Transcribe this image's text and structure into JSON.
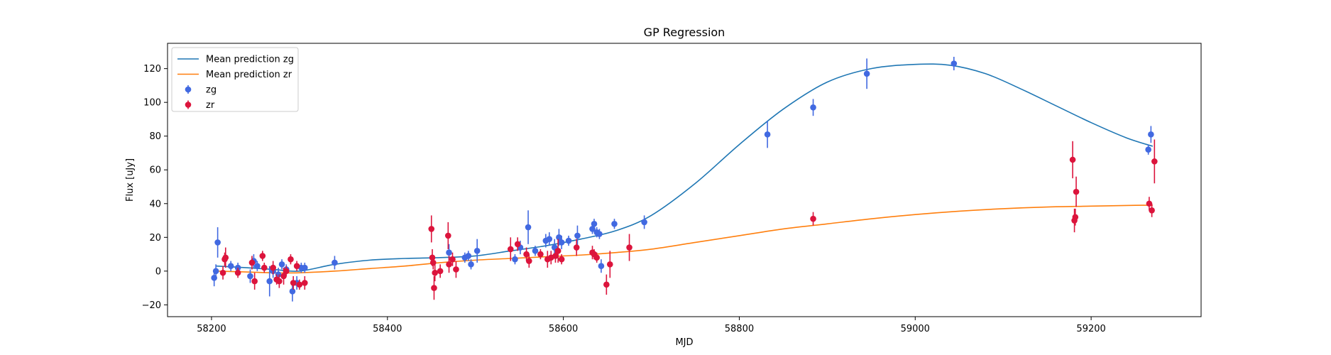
{
  "chart_data": {
    "type": "scatter",
    "title": "GP Regression",
    "xlabel": "MJD",
    "ylabel": "Flux [uJy]",
    "xlim": [
      58150,
      59325
    ],
    "ylim": [
      -27,
      135
    ],
    "xticks": [
      58200,
      58400,
      58600,
      58800,
      59000,
      59200
    ],
    "yticks": [
      -20,
      0,
      20,
      40,
      60,
      80,
      100,
      120
    ],
    "legend_position": "upper-left",
    "lines": [
      {
        "name": "Mean prediction zg",
        "color": "#1f77b4",
        "x": [
          58205,
          58240,
          58270,
          58300,
          58340,
          58380,
          58420,
          58460,
          58500,
          58540,
          58580,
          58620,
          58660,
          58700,
          58750,
          58800,
          58850,
          58900,
          58950,
          59000,
          59040,
          59080,
          59120,
          59160,
          59200,
          59240,
          59270
        ],
        "y": [
          3,
          2,
          1,
          0,
          4,
          6.5,
          7.5,
          8,
          9,
          12,
          15,
          19,
          24,
          33,
          52,
          75,
          96,
          112,
          120,
          122.5,
          122,
          117,
          108,
          98,
          88,
          79,
          74
        ]
      },
      {
        "name": "Mean prediction zr",
        "color": "#ff7f0e",
        "x": [
          58205,
          58240,
          58270,
          58300,
          58340,
          58380,
          58420,
          58460,
          58500,
          58540,
          58580,
          58620,
          58660,
          58700,
          58750,
          58800,
          58850,
          58900,
          58950,
          59000,
          59050,
          59100,
          59150,
          59200,
          59250,
          59270
        ],
        "y": [
          0,
          -0.5,
          -1,
          -1,
          0,
          1.5,
          3,
          5,
          6.5,
          7.5,
          8.5,
          9.5,
          11,
          13,
          17,
          21,
          25,
          28,
          31,
          33.5,
          35.5,
          37,
          38,
          38.5,
          39,
          39
        ]
      }
    ],
    "series": [
      {
        "name": "zg",
        "color": "#4169e1",
        "points": [
          {
            "x": 58203,
            "y": -4,
            "err": 5
          },
          {
            "x": 58205,
            "y": 0,
            "err": 4
          },
          {
            "x": 58207,
            "y": 17,
            "err": 9
          },
          {
            "x": 58222,
            "y": 3,
            "err": 3
          },
          {
            "x": 58230,
            "y": 2,
            "err": 3
          },
          {
            "x": 58244,
            "y": -3,
            "err": 4
          },
          {
            "x": 58248,
            "y": 6,
            "err": 4
          },
          {
            "x": 58252,
            "y": 3,
            "err": 3
          },
          {
            "x": 58266,
            "y": -6,
            "err": 9
          },
          {
            "x": 58270,
            "y": 0,
            "err": 4
          },
          {
            "x": 58276,
            "y": -2,
            "err": 4
          },
          {
            "x": 58280,
            "y": 4,
            "err": 3
          },
          {
            "x": 58285,
            "y": 1,
            "err": 3
          },
          {
            "x": 58292,
            "y": -12,
            "err": 6
          },
          {
            "x": 58297,
            "y": -7,
            "err": 4
          },
          {
            "x": 58302,
            "y": 2,
            "err": 3
          },
          {
            "x": 58306,
            "y": 2,
            "err": 3
          },
          {
            "x": 58340,
            "y": 5,
            "err": 4
          },
          {
            "x": 58470,
            "y": 11,
            "err": 5
          },
          {
            "x": 58488,
            "y": 8,
            "err": 3
          },
          {
            "x": 58492,
            "y": 9,
            "err": 3
          },
          {
            "x": 58495,
            "y": 4,
            "err": 3
          },
          {
            "x": 58502,
            "y": 12,
            "err": 7
          },
          {
            "x": 58545,
            "y": 7,
            "err": 3
          },
          {
            "x": 58551,
            "y": 14,
            "err": 4
          },
          {
            "x": 58560,
            "y": 26,
            "err": 10
          },
          {
            "x": 58568,
            "y": 12,
            "err": 3
          },
          {
            "x": 58580,
            "y": 18,
            "err": 4
          },
          {
            "x": 58584,
            "y": 19,
            "err": 4
          },
          {
            "x": 58590,
            "y": 14,
            "err": 5
          },
          {
            "x": 58595,
            "y": 20,
            "err": 5
          },
          {
            "x": 58598,
            "y": 17,
            "err": 4
          },
          {
            "x": 58606,
            "y": 18,
            "err": 3
          },
          {
            "x": 58616,
            "y": 21,
            "err": 6
          },
          {
            "x": 58633,
            "y": 25,
            "err": 3
          },
          {
            "x": 58635,
            "y": 28,
            "err": 3
          },
          {
            "x": 58638,
            "y": 23,
            "err": 3
          },
          {
            "x": 58641,
            "y": 22,
            "err": 3
          },
          {
            "x": 58643,
            "y": 3,
            "err": 4
          },
          {
            "x": 58658,
            "y": 28,
            "err": 3
          },
          {
            "x": 58692,
            "y": 29,
            "err": 4
          },
          {
            "x": 58832,
            "y": 81,
            "err": 8
          },
          {
            "x": 58884,
            "y": 97,
            "err": 5
          },
          {
            "x": 58945,
            "y": 117,
            "err": 9
          },
          {
            "x": 59044,
            "y": 123,
            "err": 4
          },
          {
            "x": 59265,
            "y": 72,
            "err": 3
          },
          {
            "x": 59268,
            "y": 81,
            "err": 5
          }
        ]
      },
      {
        "name": "zr",
        "color": "#dc143c",
        "points": [
          {
            "x": 58213,
            "y": -1,
            "err": 4
          },
          {
            "x": 58215,
            "y": 7,
            "err": 4
          },
          {
            "x": 58216,
            "y": 8,
            "err": 6
          },
          {
            "x": 58230,
            "y": -1,
            "err": 3
          },
          {
            "x": 58246,
            "y": 5,
            "err": 4
          },
          {
            "x": 58249,
            "y": -6,
            "err": 5
          },
          {
            "x": 58258,
            "y": 9,
            "err": 3
          },
          {
            "x": 58260,
            "y": 2,
            "err": 3
          },
          {
            "x": 58270,
            "y": 2,
            "err": 4
          },
          {
            "x": 58274,
            "y": -5,
            "err": 3
          },
          {
            "x": 58277,
            "y": -6,
            "err": 4
          },
          {
            "x": 58282,
            "y": -3,
            "err": 5
          },
          {
            "x": 58285,
            "y": 0,
            "err": 3
          },
          {
            "x": 58290,
            "y": 7,
            "err": 3
          },
          {
            "x": 58293,
            "y": -7,
            "err": 4
          },
          {
            "x": 58297,
            "y": 3,
            "err": 3
          },
          {
            "x": 58300,
            "y": -8,
            "err": 3
          },
          {
            "x": 58306,
            "y": -7,
            "err": 4
          },
          {
            "x": 58450,
            "y": 25,
            "err": 8
          },
          {
            "x": 58451,
            "y": 8,
            "err": 5
          },
          {
            "x": 58452,
            "y": 5,
            "err": 4
          },
          {
            "x": 58453,
            "y": -10,
            "err": 7
          },
          {
            "x": 58454,
            "y": -1,
            "err": 5
          },
          {
            "x": 58460,
            "y": 0,
            "err": 4
          },
          {
            "x": 58469,
            "y": 21,
            "err": 8
          },
          {
            "x": 58470,
            "y": 4,
            "err": 5
          },
          {
            "x": 58474,
            "y": 7,
            "err": 4
          },
          {
            "x": 58478,
            "y": 1,
            "err": 5
          },
          {
            "x": 58540,
            "y": 13,
            "err": 7
          },
          {
            "x": 58548,
            "y": 16,
            "err": 4
          },
          {
            "x": 58558,
            "y": 10,
            "err": 4
          },
          {
            "x": 58561,
            "y": 6,
            "err": 4
          },
          {
            "x": 58574,
            "y": 10,
            "err": 3
          },
          {
            "x": 58582,
            "y": 7,
            "err": 5
          },
          {
            "x": 58586,
            "y": 8,
            "err": 4
          },
          {
            "x": 58591,
            "y": 9,
            "err": 4
          },
          {
            "x": 58594,
            "y": 12,
            "err": 7
          },
          {
            "x": 58598,
            "y": 7,
            "err": 3
          },
          {
            "x": 58615,
            "y": 14,
            "err": 5
          },
          {
            "x": 58633,
            "y": 11,
            "err": 4
          },
          {
            "x": 58635,
            "y": 10,
            "err": 3
          },
          {
            "x": 58638,
            "y": 8,
            "err": 3
          },
          {
            "x": 58649,
            "y": -8,
            "err": 6
          },
          {
            "x": 58653,
            "y": 4,
            "err": 8
          },
          {
            "x": 58675,
            "y": 14,
            "err": 8
          },
          {
            "x": 58884,
            "y": 31,
            "err": 4
          },
          {
            "x": 59179,
            "y": 66,
            "err": 11
          },
          {
            "x": 59181,
            "y": 30,
            "err": 7
          },
          {
            "x": 59182,
            "y": 32,
            "err": 5
          },
          {
            "x": 59183,
            "y": 47,
            "err": 9
          },
          {
            "x": 59266,
            "y": 40,
            "err": 4
          },
          {
            "x": 59269,
            "y": 36,
            "err": 4
          },
          {
            "x": 59272,
            "y": 65,
            "err": 13
          }
        ]
      }
    ]
  }
}
